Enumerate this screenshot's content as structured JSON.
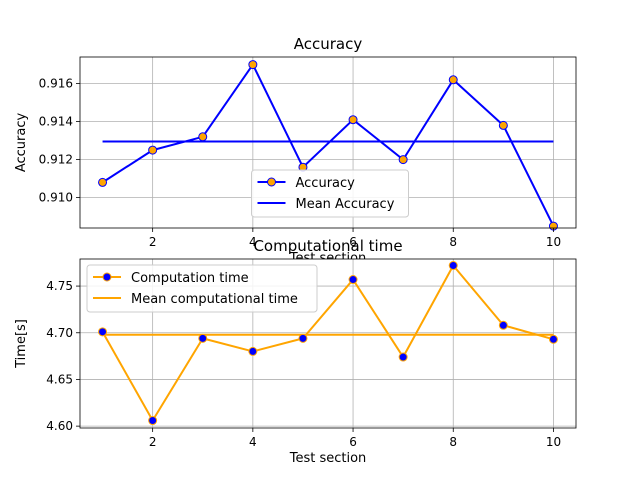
{
  "chart_data": [
    {
      "type": "line",
      "title": "Accuracy",
      "xlabel": "Test section",
      "ylabel": "Accuracy",
      "xlim": [
        0.55,
        10.45
      ],
      "ylim": [
        0.9084,
        0.9174
      ],
      "xticks": [
        2,
        4,
        6,
        8,
        10
      ],
      "yticks": [
        0.91,
        0.912,
        0.914,
        0.916
      ],
      "ytick_labels": [
        "0.910",
        "0.912",
        "0.914",
        "0.916"
      ],
      "grid": true,
      "legend_position": "bottom-center",
      "series": [
        {
          "name": "Accuracy",
          "x": [
            1,
            2,
            3,
            4,
            5,
            6,
            7,
            8,
            9,
            10
          ],
          "y": [
            0.9108,
            0.9125,
            0.9132,
            0.917,
            0.9116,
            0.9141,
            0.912,
            0.9162,
            0.9138,
            0.9085
          ],
          "line_color": "#0000ff",
          "marker_face": "#ffa500",
          "marker_edge": "#0000ff",
          "markers": true
        },
        {
          "name": "Mean Accuracy",
          "x": [
            1,
            10
          ],
          "y": [
            0.91295,
            0.91295
          ],
          "line_color": "#0000ff",
          "markers": false
        }
      ]
    },
    {
      "type": "line",
      "title": "Computational time",
      "xlabel": "Test section",
      "ylabel": "Time[s]",
      "xlim": [
        0.55,
        10.45
      ],
      "ylim": [
        4.598,
        4.779
      ],
      "xticks": [
        2,
        4,
        6,
        8,
        10
      ],
      "yticks": [
        4.6,
        4.65,
        4.7,
        4.75
      ],
      "ytick_labels": [
        "4.60",
        "4.65",
        "4.70",
        "4.75"
      ],
      "grid": true,
      "legend_position": "top-left",
      "series": [
        {
          "name": "Computation time",
          "x": [
            1,
            2,
            3,
            4,
            5,
            6,
            7,
            8,
            9,
            10
          ],
          "y": [
            4.701,
            4.606,
            4.694,
            4.68,
            4.694,
            4.757,
            4.674,
            4.772,
            4.708,
            4.693
          ],
          "line_color": "#ffa500",
          "marker_face": "#0000ff",
          "marker_edge": "#ffa500",
          "markers": true
        },
        {
          "name": "Mean computational time",
          "x": [
            1,
            10
          ],
          "y": [
            4.6979,
            4.6979
          ],
          "line_color": "#ffa500",
          "markers": false
        }
      ]
    }
  ]
}
